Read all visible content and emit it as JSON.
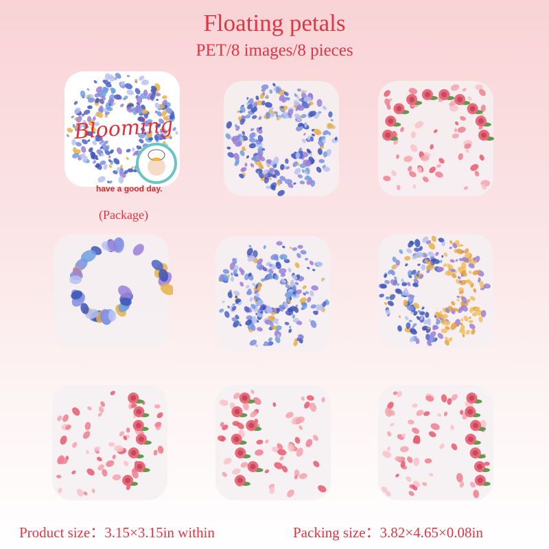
{
  "header": {
    "title": "Floating petals",
    "subtitle": "PET/8 images/8 pieces"
  },
  "package": {
    "logo_text": "Blooming",
    "slogan": "have a good day.",
    "caption": "(Package)"
  },
  "stickers": [
    {
      "name": "package",
      "style": "blue-petal-ring"
    },
    {
      "name": "design-1",
      "style": "blue-petal-ring"
    },
    {
      "name": "design-2",
      "style": "pink-rose-frame"
    },
    {
      "name": "design-3",
      "style": "blue-flower-spiral"
    },
    {
      "name": "design-4",
      "style": "blue-dot-rings"
    },
    {
      "name": "design-5",
      "style": "blue-orange-swirl"
    },
    {
      "name": "design-6",
      "style": "roses-right-petals"
    },
    {
      "name": "design-7",
      "style": "roses-left-petals"
    },
    {
      "name": "design-8",
      "style": "roses-right-petals"
    }
  ],
  "footer": {
    "product_size": "Product size：3.15×3.15in within",
    "packing_size": "Packing size：3.82×4.65×0.08in"
  },
  "colors": {
    "accent": "#e23442",
    "blue": "#5a6fd0",
    "pink": "#ee7f8e",
    "gold": "#e8b048"
  }
}
